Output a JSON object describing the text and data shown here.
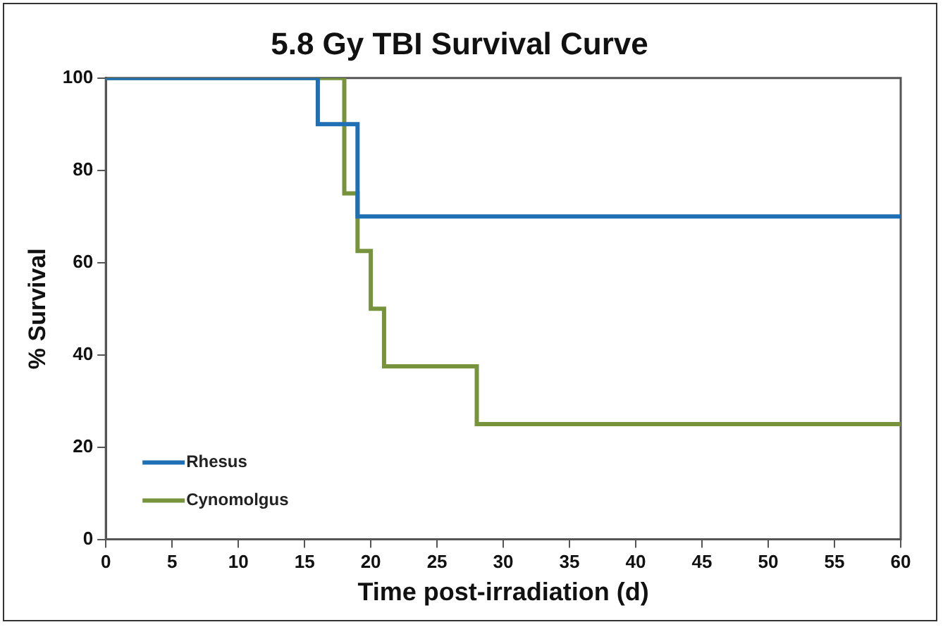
{
  "chart_data": {
    "type": "step",
    "title": "5.8 Gy TBI Survival Curve",
    "xlabel": "Time post-irradiation (d)",
    "ylabel": "% Survival",
    "series": [
      {
        "name": "Rhesus",
        "color": "#1f6fb4",
        "x": [
          0,
          16,
          19,
          60
        ],
        "values": [
          100,
          90,
          70,
          70
        ]
      },
      {
        "name": "Cynomolgus",
        "color": "#77933c",
        "x": [
          0,
          18,
          19,
          20,
          21,
          28,
          60
        ],
        "values": [
          100,
          75,
          62.5,
          50,
          37.5,
          25,
          25
        ]
      }
    ],
    "xlim": [
      0,
      60
    ],
    "xticks": [
      0,
      5,
      10,
      15,
      20,
      25,
      30,
      35,
      40,
      45,
      50,
      55,
      60
    ],
    "ylim": [
      0,
      100
    ],
    "yticks": [
      0,
      20,
      40,
      60,
      80,
      100
    ],
    "grid": false,
    "legend": "bottom left",
    "marker": "none",
    "line_style": "solid"
  }
}
